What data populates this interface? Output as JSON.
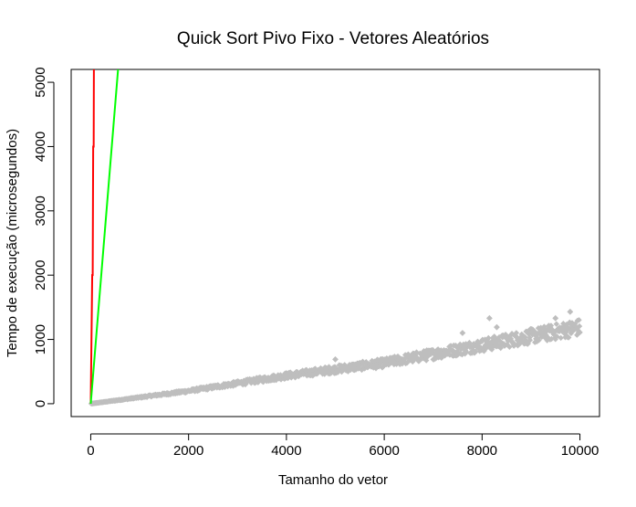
{
  "chart_data": {
    "type": "scatter",
    "title": "Quick Sort Pivo Fixo - Vetores Aleatórios",
    "xlabel": "Tamanho do vetor",
    "ylabel": "Tempo de execução (microsegundos)",
    "xlim": [
      -400,
      10400
    ],
    "ylim": [
      -200,
      5200
    ],
    "x_ticks": [
      0,
      2000,
      4000,
      6000,
      8000,
      10000
    ],
    "y_ticks": [
      0,
      1000,
      2000,
      3000,
      4000,
      5000
    ],
    "grid": false,
    "legend": "none",
    "series": [
      {
        "kind": "points",
        "color": "#bebebe",
        "marker": "diamond",
        "trend": [
          {
            "x": 0,
            "y": 0
          },
          {
            "x": 2000,
            "y": 200
          },
          {
            "x": 4000,
            "y": 440
          },
          {
            "x": 6000,
            "y": 640
          },
          {
            "x": 8000,
            "y": 920
          },
          {
            "x": 10000,
            "y": 1200
          }
        ],
        "spread_low": 0.88,
        "spread_high": 1.1,
        "outliers": [
          {
            "x": 2800,
            "y": 300
          },
          {
            "x": 5000,
            "y": 690
          },
          {
            "x": 7600,
            "y": 1100
          },
          {
            "x": 8150,
            "y": 1330
          },
          {
            "x": 8300,
            "y": 1190
          },
          {
            "x": 9500,
            "y": 1330
          },
          {
            "x": 9800,
            "y": 1430
          }
        ]
      },
      {
        "kind": "line",
        "color": "#ff0000",
        "points": [
          {
            "x": 0,
            "y": 0
          },
          {
            "x": 30,
            "y": 2000
          },
          {
            "x": 40,
            "y": 2000
          },
          {
            "x": 50,
            "y": 4000
          },
          {
            "x": 60,
            "y": 4000
          },
          {
            "x": 65,
            "y": 5400
          }
        ]
      },
      {
        "kind": "line",
        "color": "#00ff00",
        "points": [
          {
            "x": 0,
            "y": 0
          },
          {
            "x": 580,
            "y": 5400
          }
        ]
      }
    ]
  }
}
